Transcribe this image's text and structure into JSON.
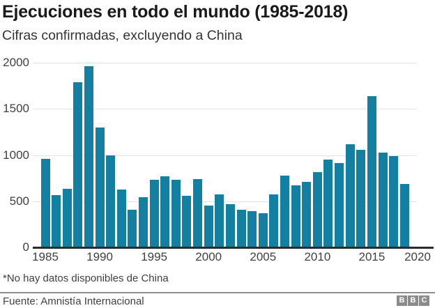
{
  "header": {
    "title": "Ejecuciones en todo el mundo (1985-2018)",
    "subtitle": "Cifras confirmadas, excluyendo a China"
  },
  "chart_data": {
    "type": "bar",
    "title": "Ejecuciones en todo el mundo (1985-2018)",
    "subtitle": "Cifras confirmadas, excluyendo a China",
    "x": [
      1985,
      1986,
      1987,
      1988,
      1989,
      1990,
      1991,
      1992,
      1993,
      1994,
      1995,
      1996,
      1997,
      1998,
      1999,
      2000,
      2001,
      2002,
      2003,
      2004,
      2005,
      2006,
      2007,
      2008,
      2009,
      2010,
      2011,
      2012,
      2013,
      2014,
      2015,
      2016,
      2017,
      2018
    ],
    "values": [
      960,
      565,
      635,
      1790,
      1965,
      1300,
      1000,
      630,
      410,
      540,
      735,
      770,
      730,
      555,
      740,
      450,
      570,
      465,
      410,
      390,
      370,
      570,
      775,
      670,
      710,
      815,
      950,
      910,
      1120,
      1055,
      1634,
      1030,
      990,
      690
    ],
    "ylim": [
      0,
      2000
    ],
    "yticks": [
      0,
      500,
      1000,
      1500,
      2000
    ],
    "xticks": [
      1985,
      1990,
      1995,
      2000,
      2005,
      2010,
      2015,
      2020
    ],
    "bar_color": "#1380A1",
    "grid": "horizontal",
    "legend": "none"
  },
  "footer": {
    "footnote": "*No hay datos disponibles de China",
    "source": "Fuente: Amnistía Internacional",
    "logo_letters": [
      "B",
      "B",
      "C"
    ]
  }
}
